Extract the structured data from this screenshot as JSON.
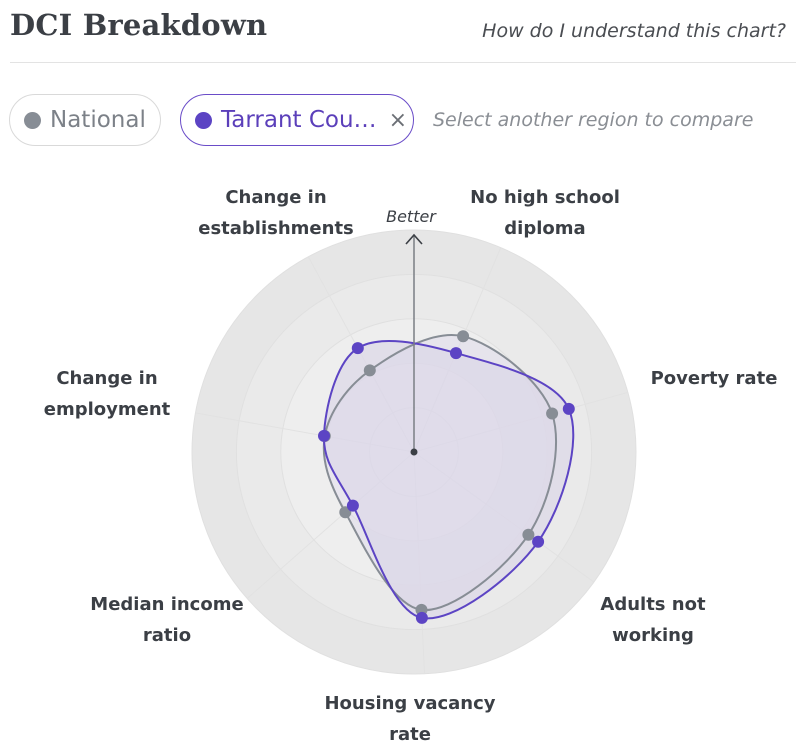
{
  "header": {
    "title": "DCI Breakdown",
    "help_link": "How do I understand this chart?"
  },
  "compare": {
    "national_chip": "National",
    "county_chip": "Tarrant Cou…",
    "remove_symbol": "×",
    "select_prompt": "Select another region to compare"
  },
  "colors": {
    "national": "#878d95",
    "county": "#5c44c4",
    "fill": "#dcd8e8"
  },
  "chart_data": {
    "type": "radar",
    "title": "DCI Breakdown",
    "direction_label": "Better",
    "rlim": [
      0,
      5
    ],
    "rings": 5,
    "axes": [
      {
        "id": "no-high-school",
        "lines": [
          "No high school",
          "diploma"
        ]
      },
      {
        "id": "poverty-rate",
        "lines": [
          "Poverty rate"
        ]
      },
      {
        "id": "adults-not-working",
        "lines": [
          "Adults not",
          "working"
        ]
      },
      {
        "id": "housing-vacancy",
        "lines": [
          "Housing vacancy",
          "rate"
        ]
      },
      {
        "id": "median-income",
        "lines": [
          "Median income",
          "ratio"
        ]
      },
      {
        "id": "change-employment",
        "lines": [
          "Change in",
          "employment"
        ]
      },
      {
        "id": "change-establishments",
        "lines": [
          "Change in",
          "establishments"
        ]
      }
    ],
    "series": [
      {
        "name": "National",
        "values": [
          2.83,
          3.23,
          3.18,
          3.56,
          2.06,
          2.04,
          2.09
        ]
      },
      {
        "name": "Tarrant County",
        "values": [
          2.42,
          3.62,
          3.45,
          3.74,
          1.83,
          2.06,
          2.66
        ]
      }
    ]
  }
}
